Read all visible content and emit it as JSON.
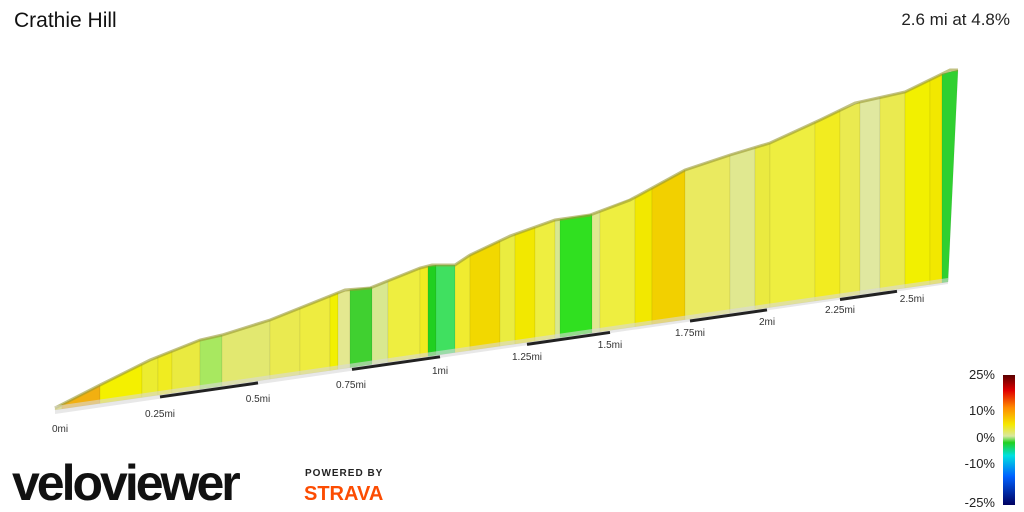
{
  "header": {
    "title": "Crathie Hill",
    "summary": "2.6 mi at 4.8%"
  },
  "distance_labels": [
    "0mi",
    "0.25mi",
    "0.5mi",
    "0.75mi",
    "1mi",
    "1.25mi",
    "1.5mi",
    "1.75mi",
    "2mi",
    "2.25mi",
    "2.5mi"
  ],
  "legend": {
    "labels": [
      "25%",
      "10%",
      "0%",
      "-10%",
      "-25%"
    ]
  },
  "branding": {
    "logo": "veloviewer",
    "powered_by": "POWERED BY",
    "partner": "STRAVA"
  }
}
